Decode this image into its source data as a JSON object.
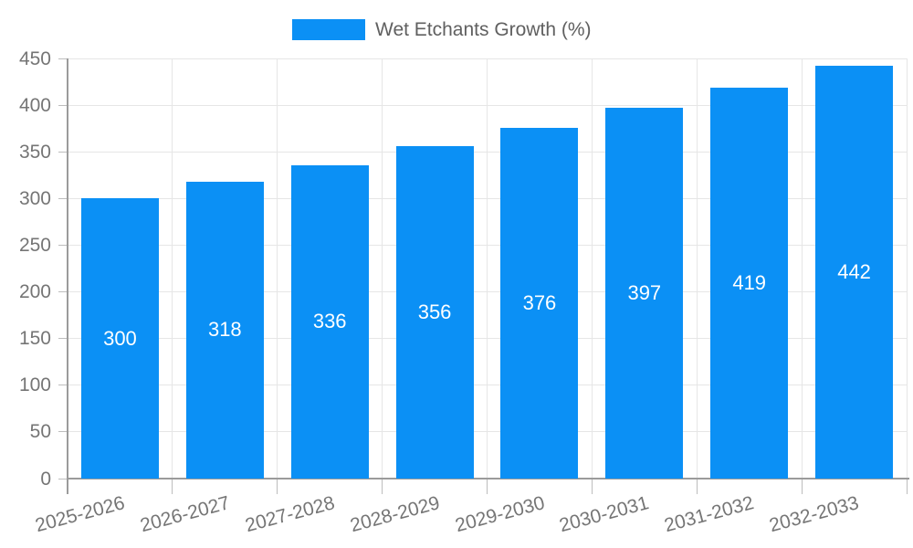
{
  "legend": {
    "label": "Wet Etchants Growth (%)"
  },
  "chart_data": {
    "type": "bar",
    "title": "",
    "xlabel": "",
    "ylabel": "",
    "categories": [
      "2025-2026",
      "2026-2027",
      "2027-2028",
      "2028-2029",
      "2029-2030",
      "2030-2031",
      "2031-2032",
      "2032-2033"
    ],
    "series": [
      {
        "name": "Wet Etchants Growth (%)",
        "values": [
          300,
          318,
          336,
          356,
          376,
          397,
          419,
          442
        ]
      }
    ],
    "value_labels_shown": true,
    "ylim": [
      0,
      450
    ],
    "y_ticks": [
      0,
      50,
      100,
      150,
      200,
      250,
      300,
      350,
      400,
      450
    ],
    "x_tick_rotation": -15,
    "grid": true,
    "legend_position": "top-center",
    "colors": {
      "bar": "#0b90f5",
      "grid": "#e6e6e6",
      "axis": "#9b9b9b",
      "tick": "#bdbdbd",
      "axis_text": "#757575",
      "legend_text": "#606060",
      "value_label": "#ffffff",
      "background": "#ffffff"
    }
  }
}
